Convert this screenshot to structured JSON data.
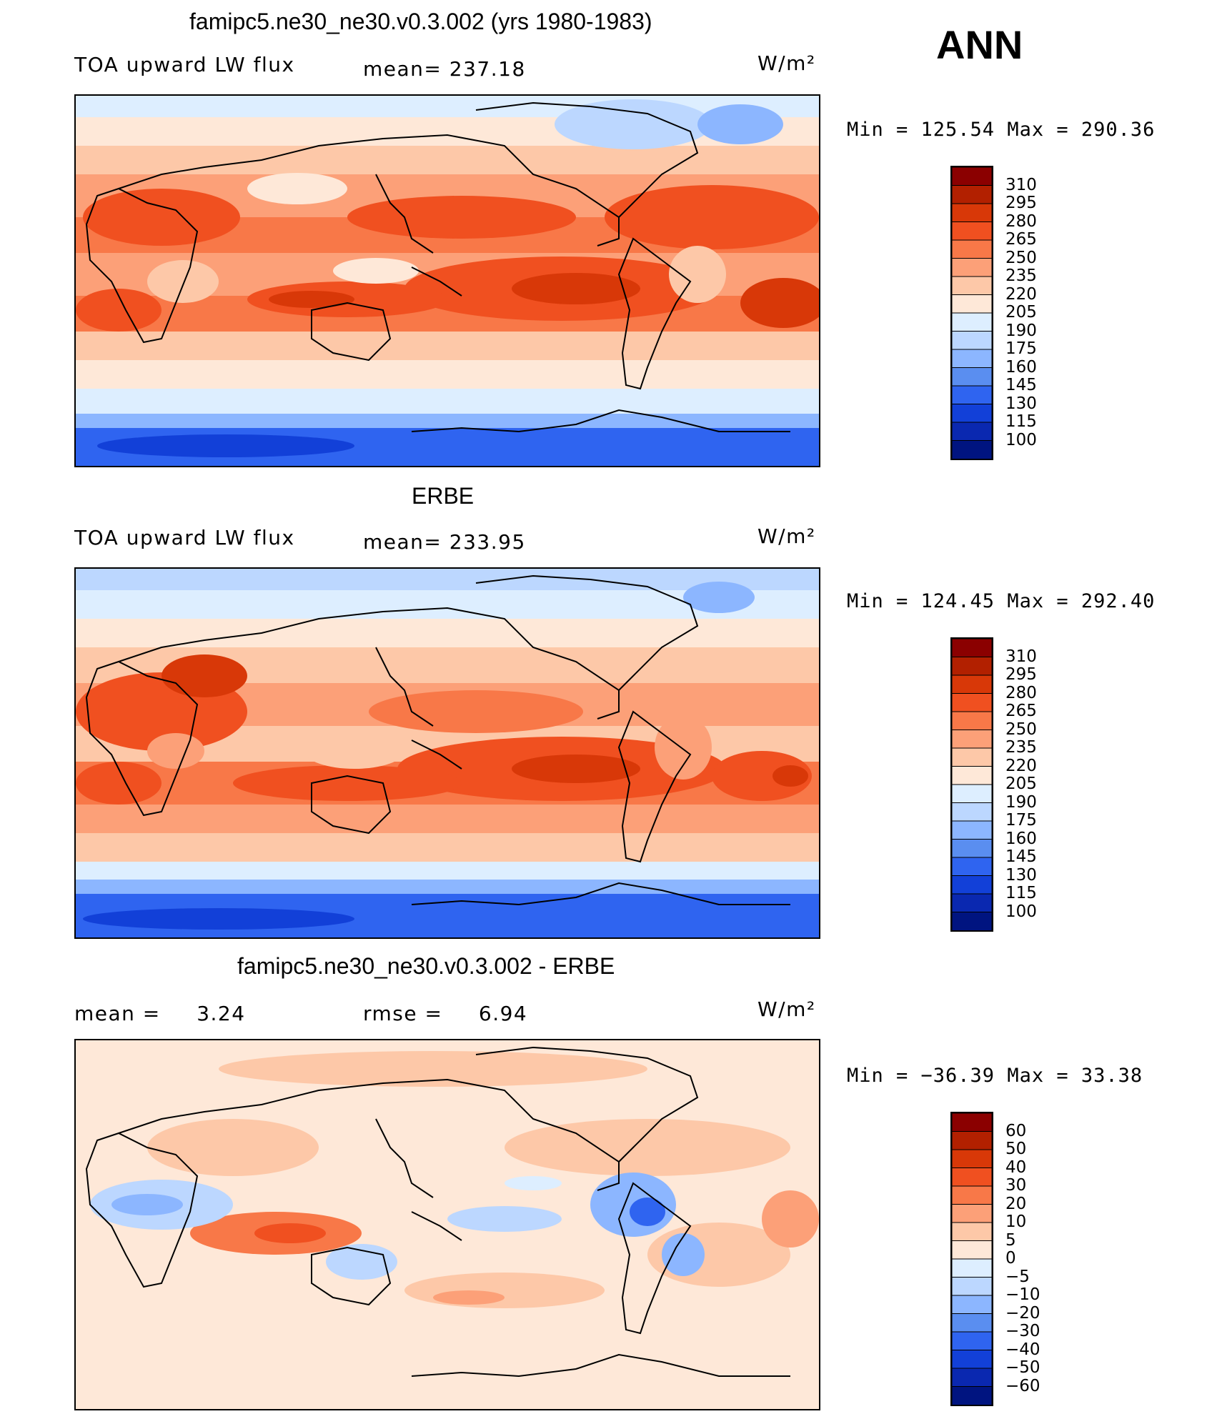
{
  "season": "ANN",
  "units": "W/m²",
  "panels": [
    {
      "id": "model",
      "title": "famipc5.ne30_ne30.v0.3.002 (yrs 1980-1983)",
      "variable": "TOA upward LW flux",
      "mean_label": "mean=",
      "mean_value": "237.18",
      "minmax": "Min  =  125.54  Max  =  290.36",
      "colorbar_levels": [
        "310",
        "295",
        "280",
        "265",
        "250",
        "235",
        "220",
        "205",
        "190",
        "175",
        "160",
        "145",
        "130",
        "115",
        "100"
      ]
    },
    {
      "id": "obs",
      "title": "ERBE",
      "variable": "TOA upward LW flux",
      "mean_label": "mean=",
      "mean_value": "233.95",
      "minmax": "Min  =  124.45  Max  =  292.40",
      "colorbar_levels": [
        "310",
        "295",
        "280",
        "265",
        "250",
        "235",
        "220",
        "205",
        "190",
        "175",
        "160",
        "145",
        "130",
        "115",
        "100"
      ]
    },
    {
      "id": "diff",
      "title": "famipc5.ne30_ne30.v0.3.002 - ERBE",
      "mean_label": "mean  =",
      "mean_value": "3.24",
      "rmse_label": "rmse  =",
      "rmse_value": "6.94",
      "minmax": "Min  =  −36.39  Max  =    33.38",
      "colorbar_levels": [
        "60",
        "50",
        "40",
        "30",
        "20",
        "10",
        "5",
        "0",
        "−5",
        "−10",
        "−20",
        "−30",
        "−40",
        "−50",
        "−60"
      ]
    }
  ],
  "colors": {
    "colorbar": [
      "#8b0000",
      "#b22000",
      "#d83808",
      "#f05020",
      "#f87848",
      "#fca078",
      "#fdc8a8",
      "#fee8d8",
      "#ddeeff",
      "#bcd7ff",
      "#8cb6ff",
      "#5a8ef0",
      "#2f64f0",
      "#1240d8",
      "#0a28b0",
      "#001480"
    ]
  }
}
